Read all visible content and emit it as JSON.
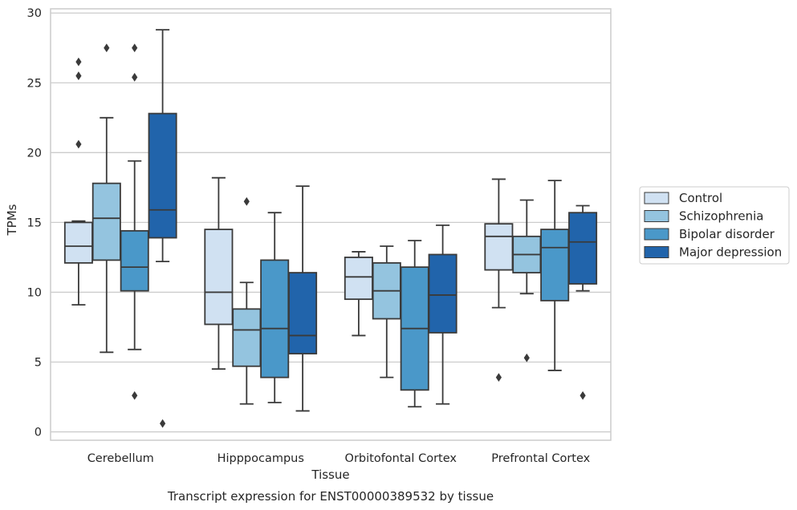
{
  "chart_data": {
    "type": "box",
    "title": "",
    "caption": "Transcript expression for ENST00000389532 by tissue",
    "xlabel": "Tissue",
    "ylabel": "TPMs",
    "ylim": [
      -0.6,
      30.3
    ],
    "yticks": [
      0,
      5,
      10,
      15,
      20,
      25,
      30
    ],
    "grid": "horizontal",
    "legend_position": "right",
    "categories": [
      "Cerebellum",
      "Hipppocampus",
      "Orbitofontal Cortex",
      "Prefrontal Cortex"
    ],
    "series": [
      {
        "name": "Control",
        "color": "#d0e1f2",
        "boxes": [
          {
            "whisker_low": 9.1,
            "q1": 12.1,
            "median": 13.3,
            "q3": 15.0,
            "whisker_high": 15.1,
            "outliers": [
              26.5,
              25.5,
              20.6
            ]
          },
          {
            "whisker_low": 4.5,
            "q1": 7.7,
            "median": 10.0,
            "q3": 14.5,
            "whisker_high": 18.2,
            "outliers": []
          },
          {
            "whisker_low": 6.9,
            "q1": 9.5,
            "median": 11.1,
            "q3": 12.5,
            "whisker_high": 12.9,
            "outliers": []
          },
          {
            "whisker_low": 8.9,
            "q1": 11.6,
            "median": 14.0,
            "q3": 14.9,
            "whisker_high": 18.1,
            "outliers": [
              3.9
            ]
          }
        ]
      },
      {
        "name": "Schizophrenia",
        "color": "#94c4df",
        "boxes": [
          {
            "whisker_low": 5.7,
            "q1": 12.3,
            "median": 15.3,
            "q3": 17.8,
            "whisker_high": 22.5,
            "outliers": [
              27.5
            ]
          },
          {
            "whisker_low": 2.0,
            "q1": 4.7,
            "median": 7.3,
            "q3": 8.8,
            "whisker_high": 10.7,
            "outliers": [
              16.5
            ]
          },
          {
            "whisker_low": 3.9,
            "q1": 8.1,
            "median": 10.1,
            "q3": 12.1,
            "whisker_high": 13.3,
            "outliers": []
          },
          {
            "whisker_low": 9.9,
            "q1": 11.4,
            "median": 12.7,
            "q3": 14.0,
            "whisker_high": 16.6,
            "outliers": [
              5.3
            ]
          }
        ]
      },
      {
        "name": "Bipolar disorder",
        "color": "#4a98c9",
        "boxes": [
          {
            "whisker_low": 5.9,
            "q1": 10.1,
            "median": 11.8,
            "q3": 14.4,
            "whisker_high": 19.4,
            "outliers": [
              27.5,
              25.4,
              2.6
            ]
          },
          {
            "whisker_low": 2.1,
            "q1": 3.9,
            "median": 7.4,
            "q3": 12.3,
            "whisker_high": 15.7,
            "outliers": []
          },
          {
            "whisker_low": 1.8,
            "q1": 3.0,
            "median": 7.4,
            "q3": 11.8,
            "whisker_high": 13.7,
            "outliers": []
          },
          {
            "whisker_low": 4.4,
            "q1": 9.4,
            "median": 13.2,
            "q3": 14.5,
            "whisker_high": 18.0,
            "outliers": []
          }
        ]
      },
      {
        "name": "Major depression",
        "color": "#2164ab",
        "boxes": [
          {
            "whisker_low": 12.2,
            "q1": 13.9,
            "median": 15.9,
            "q3": 22.8,
            "whisker_high": 28.8,
            "outliers": [
              0.6
            ]
          },
          {
            "whisker_low": 1.5,
            "q1": 5.6,
            "median": 6.9,
            "q3": 11.4,
            "whisker_high": 17.6,
            "outliers": []
          },
          {
            "whisker_low": 2.0,
            "q1": 7.1,
            "median": 9.8,
            "q3": 12.7,
            "whisker_high": 14.8,
            "outliers": []
          },
          {
            "whisker_low": 10.1,
            "q1": 10.6,
            "median": 13.6,
            "q3": 15.7,
            "whisker_high": 16.2,
            "outliers": [
              2.6
            ]
          }
        ]
      }
    ]
  }
}
